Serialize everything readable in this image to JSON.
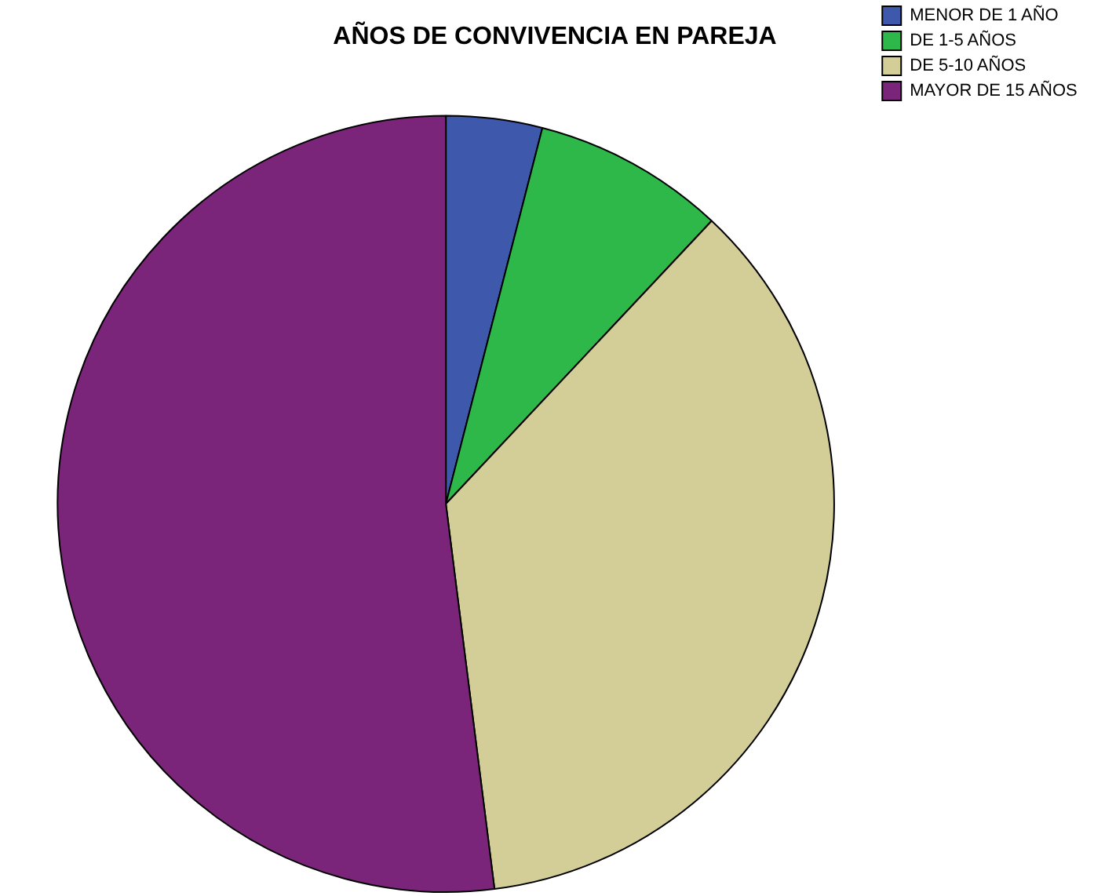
{
  "chart_data": {
    "type": "pie",
    "title": "AÑOS DE CONVIVENCIA EN PAREJA",
    "categories": [
      "MENOR DE 1 AÑO",
      "DE 1-5 AÑOS",
      "DE 5-10 AÑOS",
      "MAYOR DE 15 AÑOS"
    ],
    "values": [
      4,
      8,
      36,
      52
    ],
    "colors": [
      "#3e58ac",
      "#2eb84a",
      "#d3ce97",
      "#7a2579"
    ],
    "legend": "top right"
  }
}
